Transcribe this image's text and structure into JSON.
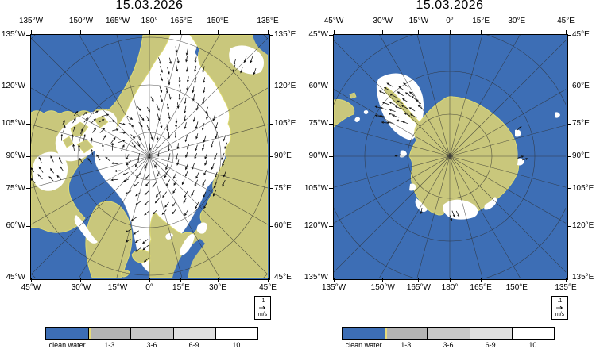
{
  "page": {
    "description": "Sea ice concentration and drift forecast, Arctic and Antarctic polar stereographic maps"
  },
  "colors": {
    "ocean": "#3D6EB5",
    "land": "#C9C77C",
    "coastline": "#E0DD72",
    "ice": "#FFFFFF",
    "graticule": "#2D2D2D",
    "arrow": "#101010",
    "ice_edge_marker": "#E8DC7A",
    "frame": "#000000"
  },
  "maps": [
    {
      "id": "arctic",
      "title": "15.03.2026",
      "top_labels": [
        "135°W",
        "150°W",
        "165°W",
        "180°",
        "165°E",
        "150°E",
        "135°E"
      ],
      "bottom_labels": [
        "45°W",
        "30°W",
        "15°W",
        "0°",
        "15°E",
        "30°E",
        "45°E"
      ],
      "left_labels": [
        "135°W",
        "120°W",
        "105°W",
        "90°W",
        "75°W",
        "60°W",
        "45°W"
      ],
      "right_labels": [
        "135°E",
        "120°E",
        "105°E",
        "90°E",
        "75°E",
        "60°E",
        "45°E"
      ],
      "vector_scale": {
        "value": ".1",
        "unit": "m/s",
        "icon": "vector-arrow-icon"
      }
    },
    {
      "id": "antarctic",
      "title": "15.03.2026",
      "top_labels": [
        "45°W",
        "30°W",
        "15°W",
        "0°",
        "15°E",
        "30°E",
        "45°E"
      ],
      "bottom_labels": [
        "135°W",
        "150°W",
        "165°W",
        "180°",
        "165°E",
        "150°E",
        "135°E"
      ],
      "left_labels": [
        "45°W",
        "60°W",
        "75°W",
        "90°W",
        "105°W",
        "120°W",
        "135°W"
      ],
      "right_labels": [
        "45°E",
        "60°E",
        "75°E",
        "90°E",
        "105°E",
        "120°E",
        "135°E"
      ],
      "vector_scale": {
        "value": ".1",
        "unit": "m/s",
        "icon": "vector-arrow-icon"
      }
    }
  ],
  "legend": {
    "labels": [
      "clean water",
      "1-3",
      "3-6",
      "6-9",
      "10"
    ],
    "cell_colors": [
      "#3D6EB5",
      "#B4B4B4",
      "#C8C8C8",
      "#E0E0E0",
      "#FFFFFF"
    ]
  }
}
